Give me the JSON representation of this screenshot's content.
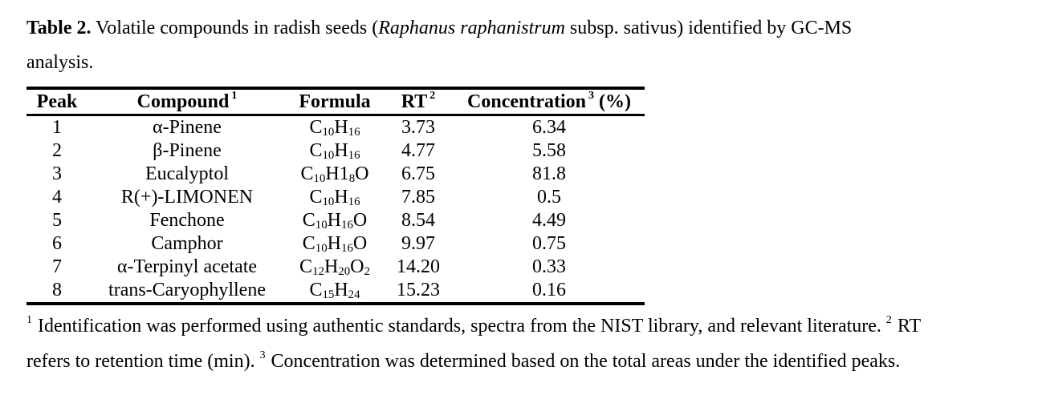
{
  "page": {
    "background_color": "#ffffff",
    "text_color": "#000000"
  },
  "caption": {
    "label": "Table 2.",
    "line1_pre_italic": " Volatile compounds in radish seeds (",
    "italic_species": "Raphanus raphanistrum",
    "line1_post_italic": " subsp. sativus) identified by GC-MS",
    "line2": "analysis."
  },
  "table": {
    "columns": [
      {
        "key": "peak",
        "label": "Peak"
      },
      {
        "key": "compound",
        "label": "Compound",
        "sup": "1"
      },
      {
        "key": "formula",
        "label": "Formula"
      },
      {
        "key": "rt",
        "label": "RT",
        "sup": "2"
      },
      {
        "key": "conc",
        "label": "Concentration",
        "sup": "3",
        "suffix": " (%)"
      }
    ],
    "rows": [
      {
        "peak": "1",
        "compound": "α-Pinene",
        "formula": "C_10_H_16_",
        "rt": "3.73",
        "conc": "6.34"
      },
      {
        "peak": "2",
        "compound": "β-Pinene",
        "formula": "C_10_H_16_",
        "rt": "4.77",
        "conc": "5.58"
      },
      {
        "peak": "3",
        "compound": "Eucalyptol",
        "formula": "C_10_H1_8_O",
        "rt": "6.75",
        "conc": "81.8"
      },
      {
        "peak": "4",
        "compound": "R(+)-LIMONEN",
        "formula": "C_10_H_16_",
        "rt": "7.85",
        "conc": "0.5"
      },
      {
        "peak": "5",
        "compound": "Fenchone",
        "formula": "C_10_H_16_O",
        "rt": "8.54",
        "conc": "4.49"
      },
      {
        "peak": "6",
        "compound": "Camphor",
        "formula": "C_10_H_16_O",
        "rt": "9.97",
        "conc": "0.75"
      },
      {
        "peak": "7",
        "compound": "α-Terpinyl acetate",
        "formula": "C_12_H_20_O_2_",
        "rt": "14.20",
        "conc": "0.33"
      },
      {
        "peak": "8",
        "compound": "trans-Caryophyllene",
        "formula": "C_15_H_24_",
        "rt": "15.23",
        "conc": "0.16"
      }
    ]
  },
  "footnotes": {
    "lines": [
      [
        {
          "sup": "1"
        },
        {
          "text": " Identification was performed using authentic standards, spectra from the NIST library, and relevant literature. "
        },
        {
          "sup": "2"
        },
        {
          "text": " RT"
        }
      ],
      [
        {
          "text": "refers to retention time (min). "
        },
        {
          "sup": "3"
        },
        {
          "text": " Concentration was determined based on the total areas under the identified peaks."
        }
      ]
    ]
  }
}
